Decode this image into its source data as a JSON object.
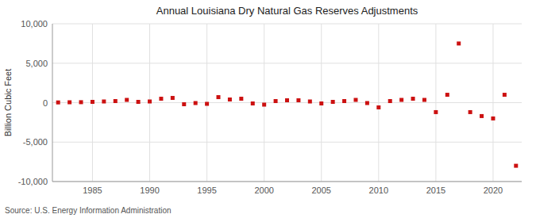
{
  "chart_data": {
    "type": "scatter",
    "title": "Annual Louisiana Dry Natural Gas Reserves Adjustments",
    "y_label": "Billion Cubic Feet",
    "annotations": [
      "Source: U.S. Energy Information Administration"
    ],
    "color": "#cc1111",
    "marker": "square",
    "grid": true,
    "xlim": [
      1981.5,
      2022.5
    ],
    "ylim": [
      -10000,
      10000
    ],
    "xticks": [
      1985,
      1990,
      1995,
      2000,
      2005,
      2010,
      2015,
      2020
    ],
    "yticks": [
      {
        "value": -10000,
        "label": "-10,000"
      },
      {
        "value": -5000,
        "label": "-5,000"
      },
      0,
      {
        "value": 5000,
        "label": "5,000"
      },
      {
        "value": 10000,
        "label": "10,000"
      }
    ],
    "x": [
      1982,
      1983,
      1984,
      1985,
      1986,
      1987,
      1988,
      1989,
      1990,
      1991,
      1992,
      1993,
      1994,
      1995,
      1996,
      1997,
      1998,
      1999,
      2000,
      2001,
      2002,
      2003,
      2004,
      2005,
      2006,
      2007,
      2008,
      2009,
      2010,
      2011,
      2012,
      2013,
      2014,
      2015,
      2016,
      2017,
      2018,
      2019,
      2020,
      2021,
      2022
    ],
    "values": [
      30,
      50,
      60,
      100,
      150,
      200,
      350,
      100,
      150,
      500,
      600,
      -200,
      -50,
      -150,
      700,
      400,
      500,
      -100,
      -250,
      200,
      300,
      300,
      150,
      -100,
      100,
      200,
      350,
      -50,
      -600,
      200,
      350,
      500,
      350,
      -1200,
      1000,
      7500,
      -1200,
      -1700,
      -2000,
      1000,
      -8000
    ]
  }
}
